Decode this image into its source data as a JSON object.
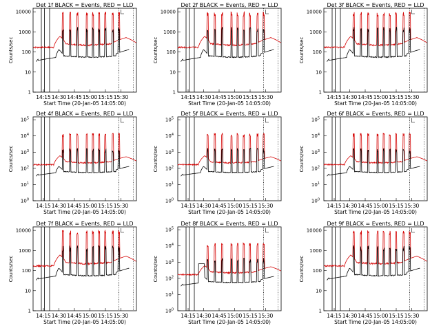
{
  "colors": {
    "events": "#000000",
    "lld": "#d40000",
    "axis": "#000000"
  },
  "common": {
    "xlabel": "Start Time (20-Jan-05 14:05:00)",
    "ylabel": "Counts/sec",
    "xticks": [
      "14:15",
      "14:30",
      "14:45",
      "15:00",
      "15:15",
      "15:30"
    ]
  },
  "chart_data": [
    {
      "type": "line",
      "title": "Det 1f BLACK = Events, RED = LLD",
      "yscale": "log",
      "ylim": [
        1,
        15000
      ],
      "yticks": [
        "1",
        "10",
        "100",
        "1000",
        "10000"
      ],
      "series": [
        {
          "name": "BLACK = Events"
        },
        {
          "name": "RED = LLD"
        }
      ]
    },
    {
      "type": "line",
      "title": "Det 2f BLACK = Events, RED = LLD",
      "yscale": "log",
      "ylim": [
        1,
        15000
      ],
      "yticks": [
        "1",
        "10",
        "100",
        "1000",
        "10000"
      ],
      "series": [
        {
          "name": "BLACK = Events"
        },
        {
          "name": "RED = LLD"
        }
      ]
    },
    {
      "type": "line",
      "title": "Det 3f BLACK = Events, RED = LLD",
      "yscale": "log",
      "ylim": [
        1,
        15000
      ],
      "yticks": [
        "1",
        "10",
        "100",
        "1000",
        "10000"
      ],
      "series": [
        {
          "name": "BLACK = Events"
        },
        {
          "name": "RED = LLD"
        }
      ]
    },
    {
      "type": "line",
      "title": "Det 4f BLACK = Events, RED = LLD",
      "yscale": "log",
      "ylim": [
        1,
        150000
      ],
      "yticks": [
        "10^0",
        "10^1",
        "10^2",
        "10^3",
        "10^4",
        "10^5"
      ],
      "series": [
        {
          "name": "BLACK = Events"
        },
        {
          "name": "RED = LLD"
        }
      ]
    },
    {
      "type": "line",
      "title": "Det 5f BLACK = Events, RED = LLD",
      "yscale": "log",
      "ylim": [
        1,
        150000
      ],
      "yticks": [
        "10^0",
        "10^1",
        "10^2",
        "10^3",
        "10^4",
        "10^5"
      ],
      "series": [
        {
          "name": "BLACK = Events"
        },
        {
          "name": "RED = LLD"
        }
      ]
    },
    {
      "type": "line",
      "title": "Det 6f BLACK = Events, RED = LLD",
      "yscale": "log",
      "ylim": [
        1,
        150000
      ],
      "yticks": [
        "10^0",
        "10^1",
        "10^2",
        "10^3",
        "10^4",
        "10^5"
      ],
      "series": [
        {
          "name": "BLACK = Events"
        },
        {
          "name": "RED = LLD"
        }
      ]
    },
    {
      "type": "line",
      "title": "Det 7f BLACK = Events, RED = LLD",
      "yscale": "log",
      "ylim": [
        1,
        15000
      ],
      "yticks": [
        "1",
        "10",
        "100",
        "1000",
        "10000"
      ],
      "series": [
        {
          "name": "BLACK = Events"
        },
        {
          "name": "RED = LLD"
        }
      ]
    },
    {
      "type": "line",
      "title": "Det 8f BLACK = Events, RED = LLD",
      "yscale": "log",
      "ylim": [
        1,
        150000
      ],
      "yticks": [
        "10^0",
        "10^1",
        "10^2",
        "10^3",
        "10^4",
        "10^5"
      ],
      "series": [
        {
          "name": "BLACK = Events"
        },
        {
          "name": "RED = LLD"
        }
      ]
    },
    {
      "type": "line",
      "title": "Det 9f BLACK = Events, RED = LLD",
      "yscale": "log",
      "ylim": [
        1,
        15000
      ],
      "yticks": [
        "1",
        "10",
        "100",
        "1000",
        "10000"
      ],
      "series": [
        {
          "name": "BLACK = Events"
        },
        {
          "name": "RED = LLD"
        }
      ]
    }
  ]
}
